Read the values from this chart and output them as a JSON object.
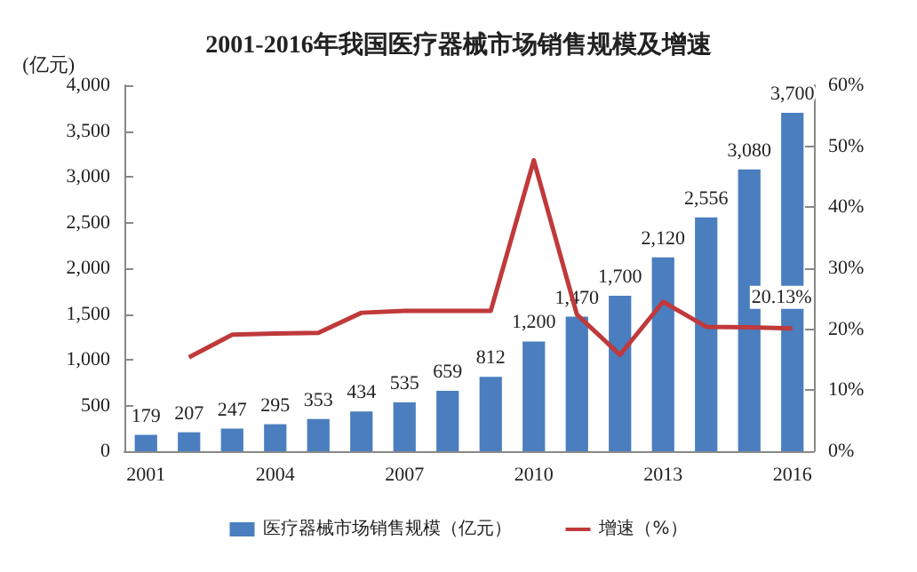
{
  "chart_data": {
    "type": "bar",
    "title": "2001-2016年我国医疗器械市场销售规模及增速",
    "ylabel": "(亿元)",
    "categories": [
      "2001",
      null,
      null,
      "2004",
      null,
      null,
      "2007",
      null,
      null,
      "2010",
      null,
      null,
      "2013",
      null,
      null,
      "2016"
    ],
    "series": [
      {
        "name": "医疗器械市场销售规模（亿元）",
        "color": "#4a7ebf",
        "values": [
          179,
          207,
          247,
          295,
          353,
          434,
          535,
          659,
          812,
          1200,
          1470,
          1700,
          2120,
          2556,
          3080,
          3700
        ],
        "value_labels": [
          "179",
          "207",
          "247",
          "295",
          "353",
          "434",
          "535",
          "659",
          "812",
          "1,200",
          "1,470",
          "1,700",
          "2,120",
          "2,556",
          "3,080",
          "3,700"
        ]
      },
      {
        "name": "增速（%）",
        "type": "line",
        "axis": "y2",
        "color": "#c0393b",
        "values": [
          null,
          15.4,
          19.1,
          19.3,
          19.4,
          22.7,
          23.0,
          23.0,
          23.0,
          47.7,
          22.4,
          15.8,
          24.5,
          20.4,
          20.3,
          20.13
        ],
        "value_labels": [
          null,
          null,
          null,
          null,
          null,
          null,
          null,
          null,
          null,
          null,
          null,
          null,
          null,
          null,
          null,
          "20.13%"
        ]
      }
    ],
    "ylim": [
      0,
      4000
    ],
    "yticks": [
      0,
      {
        "value": 500,
        "label": "500"
      },
      {
        "value": 1000,
        "label": "1,000"
      },
      {
        "value": 1500,
        "label": "1,500"
      },
      {
        "value": 2000,
        "label": "2,000"
      },
      {
        "value": 2500,
        "label": "2,500"
      },
      {
        "value": 3000,
        "label": "3,000"
      },
      {
        "value": 3500,
        "label": "3,500"
      },
      {
        "value": 4000,
        "label": "4,000"
      }
    ],
    "y2lim": [
      0,
      60
    ],
    "y2ticks": [
      {
        "value": 0,
        "label": "0%"
      },
      {
        "value": 10,
        "label": "10%"
      },
      {
        "value": 20,
        "label": "20%"
      },
      {
        "value": 30,
        "label": "30%"
      },
      {
        "value": 40,
        "label": "40%"
      },
      {
        "value": 50,
        "label": "50%"
      },
      {
        "value": 60,
        "label": "60%"
      }
    ],
    "legend": "bottom",
    "grid": false,
    "marker": "none"
  }
}
